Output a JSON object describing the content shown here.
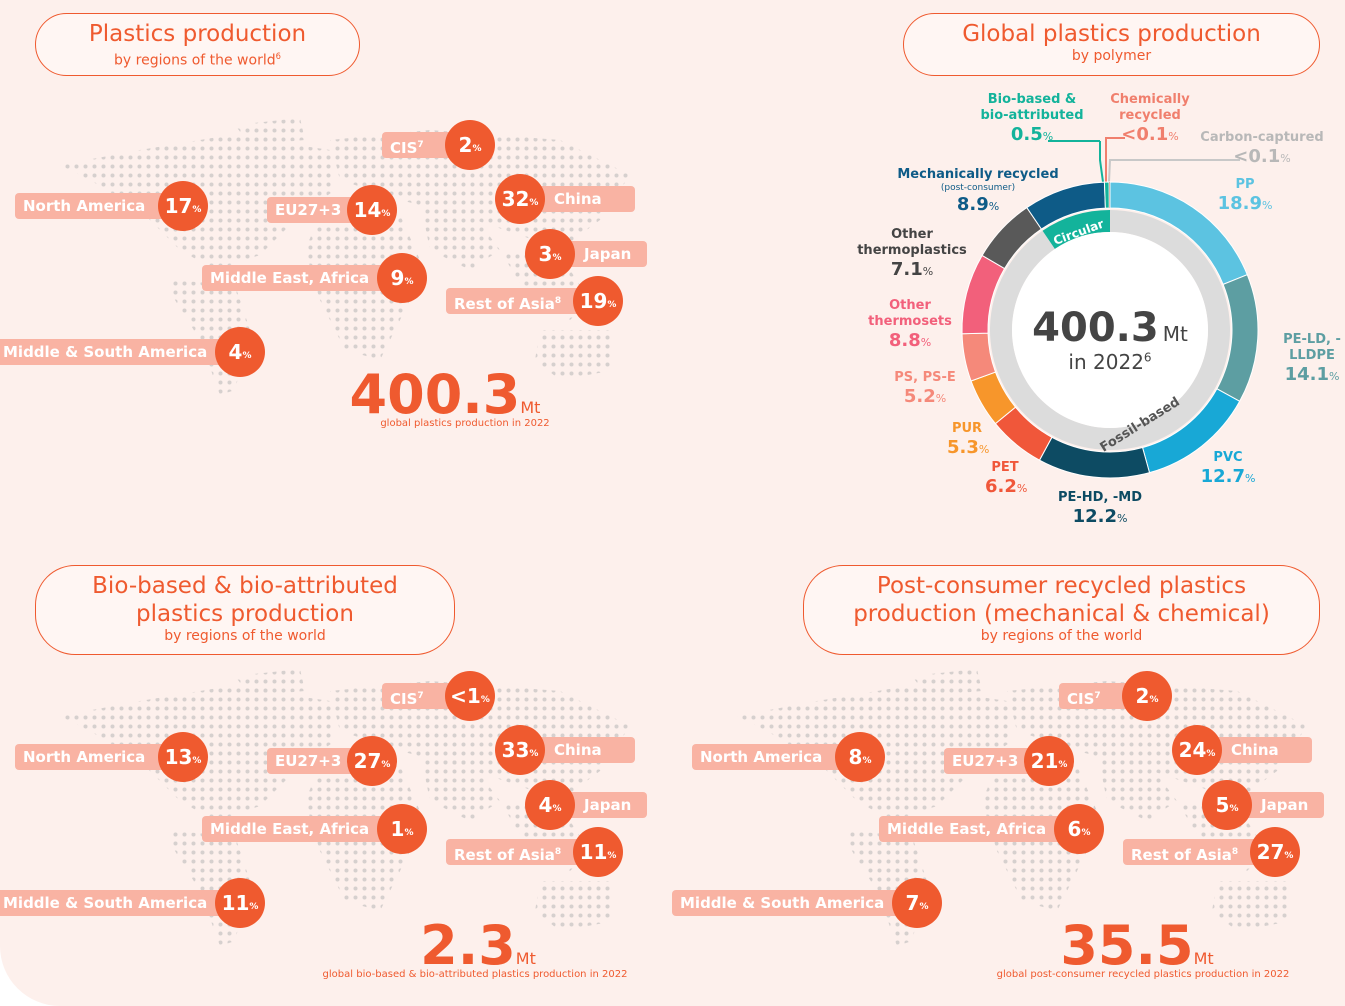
{
  "chart_data": {
    "type": "donut",
    "title": "Global plastics production",
    "subtitle": "by polymer",
    "center_value": 400.3,
    "center_unit": "Mt",
    "center_caption": "in 2022",
    "center_note": "6",
    "inner_labels": [
      "Circular",
      "Fossil-based"
    ],
    "percent_sign": "%",
    "categories": [
      "PP",
      "PE-LD, -LLDPE",
      "PVC",
      "PE-HD, -MD",
      "PET",
      "PUR",
      "PS, PS-E",
      "Other thermosets",
      "Other thermoplastics",
      "Mechanically recycled",
      "Bio-based & bio-attributed",
      "Chemically recycled",
      "Carbon-captured"
    ],
    "category_notes": [
      null,
      null,
      null,
      null,
      null,
      null,
      null,
      null,
      null,
      "(post-consumer)",
      null,
      null,
      null
    ],
    "values": [
      18.9,
      14.1,
      12.7,
      12.2,
      6.2,
      5.3,
      5.2,
      8.8,
      7.1,
      8.9,
      0.5,
      0.05,
      0.05
    ],
    "value_labels": [
      "18.9",
      "14.1",
      "12.7",
      "12.2",
      "6.2",
      "5.3",
      "5.2",
      "8.8",
      "7.1",
      "8.9",
      "0.5",
      "<0.1",
      "<0.1"
    ],
    "colors": [
      "#5cc3e1",
      "#5d9ea2",
      "#18a8d6",
      "#0d4b63",
      "#f0573a",
      "#f7962b",
      "#f5897a",
      "#f2607b",
      "#595959",
      "#0e5b87",
      "#13b39b",
      "#f07f6d",
      "#c8c8c8"
    ],
    "label_colors": [
      "#5cc3e1",
      "#5d9ea2",
      "#18a8d6",
      "#0d4b63",
      "#f0573a",
      "#f7962b",
      "#f5897a",
      "#f2607b",
      "#444444",
      "#0e5b87",
      "#13b39b",
      "#f07f6d",
      "#b8b8b8"
    ]
  },
  "maps": [
    {
      "title_lines": [
        "Plastics production"
      ],
      "subtitle": "by regions of the world",
      "subtitle_note": "6",
      "regions": [
        {
          "name": "CIS",
          "note": "7",
          "value": 2
        },
        {
          "name": "North America",
          "value": 17
        },
        {
          "name": "EU27+3",
          "value": 14
        },
        {
          "name": "China",
          "value": 32
        },
        {
          "name": "Japan",
          "value": 3
        },
        {
          "name": "Middle East, Africa",
          "value": 9
        },
        {
          "name": "Rest of Asia",
          "note": "8",
          "value": 19
        },
        {
          "name": "Middle & South America",
          "value": 4
        }
      ],
      "percent_sign": "%",
      "total": 400.3,
      "total_unit": "Mt",
      "caption": "global plastics production in 2022"
    },
    {
      "title_lines": [
        "Bio-based & bio-attributed",
        "plastics production"
      ],
      "subtitle": "by regions of the world",
      "regions": [
        {
          "name": "CIS",
          "note": "7",
          "value": "<1"
        },
        {
          "name": "North America",
          "value": 13
        },
        {
          "name": "EU27+3",
          "value": 27
        },
        {
          "name": "China",
          "value": 33
        },
        {
          "name": "Japan",
          "value": 4
        },
        {
          "name": "Middle East, Africa",
          "value": 1
        },
        {
          "name": "Rest of Asia",
          "note": "8",
          "value": 11
        },
        {
          "name": "Middle & South America",
          "value": 11
        }
      ],
      "percent_sign": "%",
      "total": 2.3,
      "total_unit": "Mt",
      "caption": "global bio-based & bio-attributed plastics production in 2022"
    },
    {
      "title_lines": [
        "Post-consumer recycled plastics",
        "production (mechanical & chemical)"
      ],
      "subtitle": "by regions of the world",
      "regions": [
        {
          "name": "CIS",
          "note": "7",
          "value": 2
        },
        {
          "name": "North America",
          "value": 8
        },
        {
          "name": "EU27+3",
          "value": 21
        },
        {
          "name": "China",
          "value": 24
        },
        {
          "name": "Japan",
          "value": 5
        },
        {
          "name": "Middle East, Africa",
          "value": 6
        },
        {
          "name": "Rest of Asia",
          "note": "8",
          "value": 27
        },
        {
          "name": "Middle & South America",
          "value": 7
        }
      ],
      "percent_sign": "%",
      "total": 35.5,
      "total_unit": "Mt",
      "caption": "global post-consumer recycled plastics production  in 2022"
    }
  ]
}
